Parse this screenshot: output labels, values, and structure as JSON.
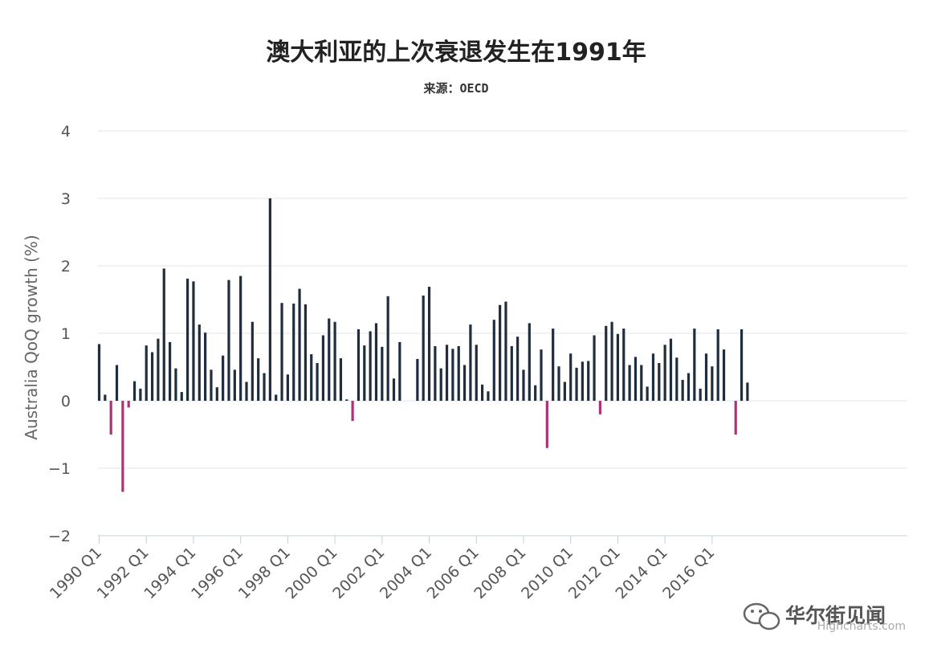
{
  "chart_data": {
    "type": "bar",
    "title": "澳大利亚的上次衰退发生在1991年",
    "subtitle": "来源：OECD",
    "ylabel": "Australia QoQ growth (%)",
    "xlabel": "",
    "ylim": [
      -2,
      4
    ],
    "yticks": [
      "4",
      "3",
      "2",
      "1",
      "0",
      "−1",
      "−2"
    ],
    "ytick_values": [
      4,
      3,
      2,
      1,
      0,
      -1,
      -2
    ],
    "xtick_labels": [
      "1990 Q1",
      "1992 Q1",
      "1994 Q1",
      "1996 Q1",
      "1998 Q1",
      "2000 Q1",
      "2002 Q1",
      "2004 Q1",
      "2006 Q1",
      "2008 Q1",
      "2010 Q1",
      "2012 Q1",
      "2014 Q1",
      "2016 Q1"
    ],
    "xtick_index": [
      0,
      8,
      16,
      24,
      32,
      40,
      48,
      56,
      64,
      72,
      80,
      88,
      96,
      104
    ],
    "start": "1990 Q1",
    "values": [
      0.84,
      0.09,
      -0.5,
      0.53,
      -1.35,
      -0.1,
      0.29,
      0.18,
      0.82,
      0.72,
      0.92,
      1.96,
      0.87,
      0.48,
      0.13,
      1.81,
      1.77,
      1.13,
      1.01,
      0.46,
      0.2,
      0.67,
      1.79,
      0.46,
      1.85,
      0.28,
      1.17,
      0.63,
      0.41,
      3.0,
      0.09,
      1.45,
      0.39,
      1.44,
      1.66,
      1.43,
      0.69,
      0.56,
      0.97,
      1.22,
      1.17,
      0.63,
      0.02,
      -0.3,
      1.06,
      0.82,
      1.03,
      1.15,
      0.8,
      1.55,
      0.33,
      0.87,
      0.0,
      0.0,
      0.62,
      1.56,
      1.69,
      0.81,
      0.48,
      0.83,
      0.77,
      0.81,
      0.53,
      1.13,
      0.83,
      0.24,
      0.14,
      1.2,
      1.42,
      1.47,
      0.81,
      0.95,
      0.46,
      1.15,
      0.23,
      0.76,
      -0.7,
      1.07,
      0.51,
      0.28,
      0.7,
      0.49,
      0.58,
      0.59,
      0.97,
      -0.2,
      1.11,
      1.17,
      0.99,
      1.07,
      0.53,
      0.65,
      0.53,
      0.21,
      0.7,
      0.56,
      0.83,
      0.92,
      0.64,
      0.31,
      0.41,
      1.07,
      0.18,
      0.7,
      0.51,
      1.06,
      0.76,
      0.0,
      -0.5,
      1.06,
      0.27
    ],
    "colors": {
      "positive": "#1f2d3d",
      "negative": "#b0307a"
    },
    "grid": true,
    "legend": "none"
  },
  "watermark": {
    "text": "华尔街见闻",
    "icon": "wechat-icon"
  },
  "credit": "Highcharts.com"
}
